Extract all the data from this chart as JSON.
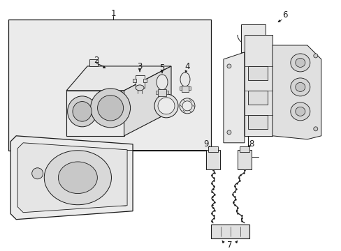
{
  "bg_color": "#ffffff",
  "line_color": "#1a1a1a",
  "fill_light": "#f0f0f0",
  "fill_mid": "#e0e0e0",
  "box_bg": "#ebebeb",
  "labels": [
    "1",
    "2",
    "3",
    "4",
    "5",
    "6",
    "7",
    "8",
    "9"
  ],
  "font_size": 8.5
}
